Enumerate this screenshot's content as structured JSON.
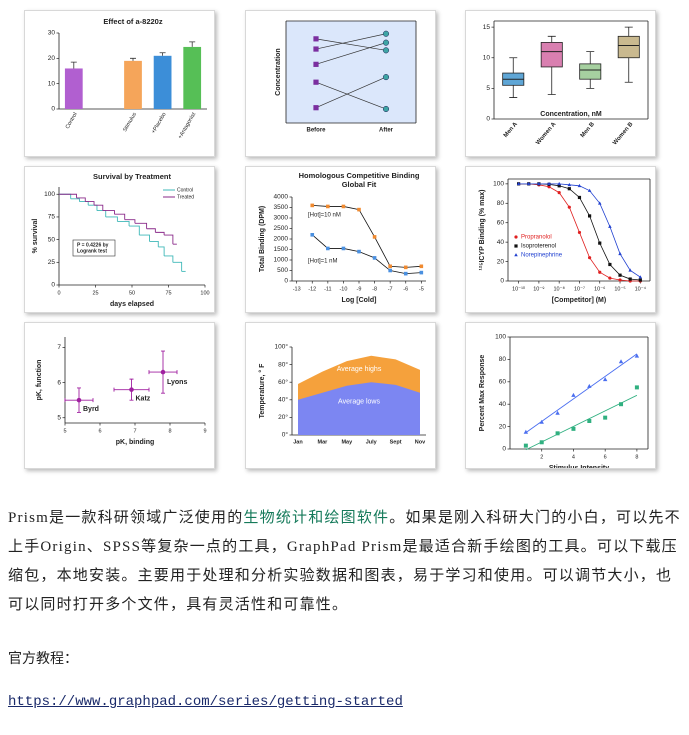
{
  "figures": [
    {
      "type": "bar",
      "title": "Effect of a-8220z",
      "categories": [
        "Control",
        null,
        "Stimulus",
        "+Placebo",
        "+Antagonist"
      ],
      "values": [
        16,
        null,
        19,
        21,
        24.5
      ],
      "errors": [
        2.5,
        null,
        1,
        1.2,
        2
      ],
      "colors": [
        "#b15fd0",
        null,
        "#f5a55a",
        "#3c8ed8",
        "#56bf56"
      ],
      "ylim": [
        0,
        30
      ],
      "yticks": [
        0,
        10,
        20,
        30
      ]
    },
    {
      "type": "before-after",
      "ylabel": "Concentration",
      "categories": [
        "Before",
        "After"
      ],
      "before": [
        8.6,
        7.8,
        6.6,
        5.2,
        3.2
      ],
      "after": [
        7.7,
        9.0,
        8.3,
        3.1,
        5.6
      ],
      "ylim": [
        2,
        10
      ],
      "colors": [
        "#7b2fa0",
        "#3fa5a5"
      ],
      "background": "#dbe7fb"
    },
    {
      "type": "box",
      "xlabel": "Concentration, nM",
      "categories": [
        "Men A",
        "Women A",
        "Men B",
        "Women B"
      ],
      "colors": [
        "#5fa6d6",
        "#d97fb0",
        "#a6d0a0",
        "#c9b98f"
      ],
      "min": [
        3.5,
        4,
        5,
        6
      ],
      "q1": [
        5.5,
        8.5,
        6.5,
        10
      ],
      "median": [
        6.5,
        11,
        8,
        12
      ],
      "q3": [
        7.5,
        12.5,
        9,
        13.5
      ],
      "max": [
        10,
        13.5,
        11,
        15
      ],
      "ylim": [
        0,
        16
      ],
      "yticks": [
        0,
        5,
        10,
        15
      ]
    },
    {
      "type": "survival",
      "title": "Survival by Treatment",
      "xlabel": "days elapsed",
      "ylabel": "% survival",
      "xlim": [
        0,
        100
      ],
      "ylim": [
        0,
        108
      ],
      "xticks": [
        0,
        25,
        50,
        75,
        100
      ],
      "yticks": [
        0,
        25,
        50,
        75,
        100
      ],
      "annotation": [
        "P = 0.4226 by",
        "Logrank test"
      ],
      "series": [
        {
          "name": "Control",
          "color": "#3fb8b8",
          "x": [
            0,
            8,
            14,
            20,
            26,
            32,
            40,
            48,
            55,
            62,
            68,
            72,
            78,
            84
          ],
          "values": [
            100,
            95,
            92,
            88,
            82,
            75,
            70,
            65,
            55,
            48,
            42,
            32,
            25,
            15
          ]
        },
        {
          "name": "Treated",
          "color": "#8a2a8a",
          "x": [
            0,
            12,
            18,
            24,
            30,
            38,
            45,
            52,
            60,
            66,
            72,
            78
          ],
          "values": [
            100,
            96,
            92,
            88,
            82,
            78,
            72,
            68,
            62,
            58,
            55,
            45
          ]
        }
      ]
    },
    {
      "type": "binding",
      "title": "Homologous Competitive Binding",
      "subtitle": "Global Fit",
      "ylabel": "Total Binding (DPM)",
      "xlabel": "Log [Cold]",
      "xlim": [
        -13.3,
        -4.7
      ],
      "ylim": [
        0,
        4000
      ],
      "xticks": [
        -13,
        -12,
        -11,
        -10,
        -9,
        -8,
        -7,
        -6,
        -5
      ],
      "yticks": [
        0,
        500,
        1000,
        1500,
        2000,
        2500,
        3000,
        3500,
        4000
      ],
      "annotations": [
        "[Hot]=10 nM",
        "[Hot]=1 nM"
      ],
      "x": [
        -12,
        -11,
        -10,
        -9,
        -8,
        -7,
        -6,
        -5
      ],
      "series": [
        {
          "color": "#f08a30",
          "values": [
            3600,
            3550,
            3550,
            3400,
            2100,
            700,
            650,
            700
          ]
        },
        {
          "color": "#4a90e0",
          "values": [
            2200,
            1550,
            1550,
            1400,
            1100,
            500,
            350,
            400
          ]
        }
      ]
    },
    {
      "type": "dose-response",
      "ylabel": "¹²⁵ICYP Binding (% max)",
      "xlabel": "[Competitor]  (M)",
      "xscale": "log",
      "xlim": [
        3e-11,
        0.0003
      ],
      "ylim": [
        0,
        105
      ],
      "yticks": [
        0,
        20,
        40,
        60,
        80,
        100
      ],
      "xticks": [
        {
          "value": 1e-10,
          "label": "10⁻¹⁰"
        },
        {
          "value": 1e-09,
          "label": "10⁻⁹"
        },
        {
          "value": 1e-08,
          "label": "10⁻⁸"
        },
        {
          "value": 1e-07,
          "label": "10⁻⁷"
        },
        {
          "value": 1e-06,
          "label": "10⁻⁶"
        },
        {
          "value": 1e-05,
          "label": "10⁻⁵"
        },
        {
          "value": 0.0001,
          "label": "10⁻⁴"
        }
      ],
      "x": [
        1e-10,
        3.16e-10,
        1e-09,
        3.16e-09,
        1e-08,
        3.16e-08,
        1e-07,
        3.16e-07,
        1e-06,
        3.16e-06,
        1e-05,
        3.16e-05,
        0.0001
      ],
      "series": [
        {
          "name": "Propranolol",
          "color": "#e02020",
          "marker": "circle",
          "values": [
            100,
            100,
            99,
            97,
            91,
            76,
            50,
            24,
            9,
            3,
            1,
            0,
            0
          ]
        },
        {
          "name": "Isoproterenol",
          "color": "#111111",
          "marker": "square",
          "values": [
            100,
            100,
            100,
            99.5,
            98,
            95,
            86,
            67,
            39,
            17,
            6,
            2,
            1
          ]
        },
        {
          "name": "Norepinephrine",
          "color": "#2040d0",
          "marker": "triangle",
          "values": [
            100,
            100,
            100,
            100,
            100,
            99,
            98,
            93,
            80,
            56,
            28,
            11,
            4
          ]
        }
      ]
    },
    {
      "type": "xy-error",
      "xlabel": "pK, binding",
      "ylabel": "pK, function",
      "xlim": [
        5,
        9
      ],
      "ylim": [
        4.85,
        7.3
      ],
      "xticks": [
        5,
        6,
        7,
        8,
        9
      ],
      "yticks": [
        5,
        6,
        7
      ],
      "color": "#a020a0",
      "points": [
        {
          "name": "Byrd",
          "x": 5.4,
          "y": 5.5,
          "xerr": 0.4,
          "yerr": 0.35
        },
        {
          "name": "Katz",
          "x": 6.9,
          "y": 5.8,
          "xerr": 0.5,
          "yerr": 0.3
        },
        {
          "name": "Lyons",
          "x": 7.8,
          "y": 6.3,
          "xerr": 0.4,
          "yerr": 0.6
        }
      ]
    },
    {
      "type": "area",
      "ylabel": "Temperature, ° F",
      "categories": [
        "Jan",
        "Mar",
        "May",
        "July",
        "Sept",
        "Nov"
      ],
      "ylim": [
        0,
        100
      ],
      "yticks": [
        {
          "value": 0,
          "label": "0°"
        },
        {
          "value": 20,
          "label": "20°"
        },
        {
          "value": 40,
          "label": "40°"
        },
        {
          "value": 60,
          "label": "60°"
        },
        {
          "value": 80,
          "label": "80°"
        },
        {
          "value": 100,
          "label": "100°"
        }
      ],
      "series": [
        {
          "name": "Average highs",
          "color": "#f5a13c",
          "values": [
            58,
            72,
            84,
            90,
            86,
            74
          ]
        },
        {
          "name": "Average lows",
          "color": "#7c86f2",
          "values": [
            40,
            48,
            56,
            60,
            57,
            48
          ]
        }
      ]
    },
    {
      "type": "regression",
      "xlabel": "Stimulus Intensity",
      "ylabel": "Percent Max Response",
      "x": [
        1,
        2,
        3,
        4,
        5,
        6,
        7,
        8
      ],
      "xlim": [
        0,
        8.7
      ],
      "ylim": [
        0,
        100
      ],
      "xticks": [
        2,
        4,
        6,
        8
      ],
      "yticks": [
        0,
        20,
        40,
        60,
        80,
        100
      ],
      "series": [
        {
          "color": "#4a6ef0",
          "marker": "triangle",
          "values": [
            15,
            24,
            32,
            48,
            56,
            62,
            78,
            83
          ]
        },
        {
          "color": "#30b080",
          "marker": "square",
          "values": [
            3,
            6,
            14,
            18,
            25,
            28,
            40,
            55
          ]
        }
      ]
    }
  ],
  "article": {
    "paragraph": [
      "Prism是一款科研领域广泛使用的",
      "生物统计和绘图软件",
      "。如果是刚入科研大门的小白，可以先不上手Origin、SPSS等复杂一点的工具，GraphPad Prism是最适合新手绘图的工具。可以下载压缩包，本地安装。主要用于处理和分析实验数据和图表，易于学习和使用。可以调节大小，也可以同时打开多个文件，具有灵活性和可靠性。"
    ],
    "heading": "官方教程：",
    "link": "https://www.graphpad.com/series/getting-started"
  }
}
